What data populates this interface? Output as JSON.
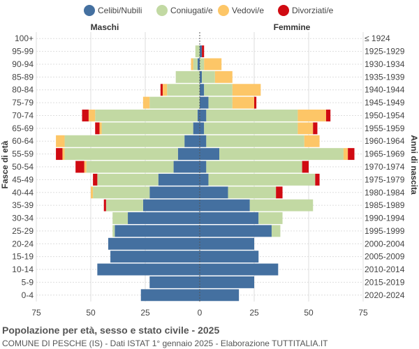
{
  "chart_data": {
    "type": "bar",
    "orientation": "horizontal",
    "stacked": true,
    "title": "Popolazione per età, sesso e stato civile - 2025",
    "subtitle": "COMUNE DI PESCHE (IS) - Dati ISTAT 1° gennaio 2025 - Elaborazione TUTTITALIA.IT",
    "ylabel_left": "Fasce di età",
    "ylabel_right": "Anni di nascita",
    "left_group_label": "Maschi",
    "right_group_label": "Femmine",
    "xlim": [
      -75,
      75
    ],
    "xticks": [
      -75,
      -50,
      -25,
      0,
      25,
      50,
      75
    ],
    "xtick_labels": [
      "75",
      "50",
      "25",
      "0",
      "25",
      "50",
      "75"
    ],
    "grid": true,
    "legend_position": "top",
    "categories": [
      "100+",
      "95-99",
      "90-94",
      "85-89",
      "80-84",
      "75-79",
      "70-74",
      "65-69",
      "60-64",
      "55-59",
      "50-54",
      "45-49",
      "40-44",
      "35-39",
      "30-34",
      "25-29",
      "20-24",
      "15-19",
      "10-14",
      "5-9",
      "0-4"
    ],
    "birth_years": [
      "≤ 1924",
      "1925-1929",
      "1930-1934",
      "1935-1939",
      "1940-1944",
      "1945-1949",
      "1950-1954",
      "1955-1959",
      "1960-1964",
      "1965-1969",
      "1970-1974",
      "1975-1979",
      "1980-1984",
      "1985-1989",
      "1990-1994",
      "1995-1999",
      "2000-2004",
      "2005-2009",
      "2010-2014",
      "2015-2019",
      "2020-2024"
    ],
    "series": [
      {
        "name": "Celibi/Nubili",
        "color": "#4470a0",
        "male": [
          0,
          0,
          1,
          0,
          0,
          0,
          1,
          3,
          7,
          10,
          12,
          19,
          23,
          26,
          33,
          39,
          42,
          41,
          47,
          23,
          27
        ],
        "female": [
          0,
          1,
          0,
          1,
          2,
          4,
          3,
          2,
          3,
          9,
          3,
          4,
          13,
          23,
          27,
          33,
          25,
          27,
          36,
          25,
          18
        ]
      },
      {
        "name": "Coniugati/e",
        "color": "#c2d9a3",
        "male": [
          0,
          2,
          2,
          11,
          15,
          23,
          47,
          42,
          55,
          52,
          40,
          28,
          26,
          17,
          7,
          1,
          0,
          0,
          0,
          0,
          0
        ],
        "female": [
          0,
          0,
          2,
          6,
          13,
          11,
          42,
          43,
          45,
          57,
          44,
          49,
          22,
          29,
          11,
          4,
          0,
          0,
          0,
          0,
          0
        ]
      },
      {
        "name": "Vedovi/e",
        "color": "#fdc667",
        "male": [
          0,
          0,
          1,
          0,
          2,
          3,
          3,
          1,
          4,
          1,
          1,
          0,
          1,
          0,
          0,
          0,
          0,
          0,
          0,
          0,
          0
        ],
        "female": [
          0,
          0,
          8,
          8,
          13,
          10,
          13,
          7,
          7,
          2,
          0,
          0,
          0,
          0,
          0,
          0,
          0,
          0,
          0,
          0,
          0
        ]
      },
      {
        "name": "Divorziati/e",
        "color": "#d00a12",
        "male": [
          0,
          0,
          0,
          0,
          1,
          0,
          3,
          2,
          0,
          3,
          4,
          2,
          0,
          1,
          0,
          0,
          0,
          0,
          0,
          0,
          0
        ],
        "female": [
          0,
          1,
          0,
          0,
          0,
          1,
          2,
          2,
          0,
          3,
          3,
          2,
          3,
          0,
          0,
          0,
          0,
          0,
          0,
          0,
          0
        ]
      }
    ]
  }
}
